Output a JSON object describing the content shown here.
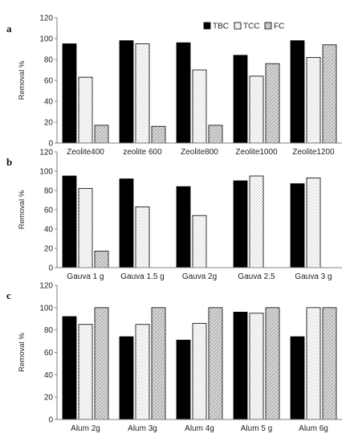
{
  "figure": {
    "legend": {
      "placement": "top-right",
      "entries": [
        {
          "label": "TBC",
          "pattern": "solid"
        },
        {
          "label": "TCC",
          "pattern": "dots"
        },
        {
          "label": "FC",
          "pattern": "hatch"
        }
      ]
    },
    "colors": {
      "TBC": "#000000",
      "TCC_dots": "#7a7a7a",
      "FC_hatch": "#808080",
      "axis": "#7f7f7f"
    }
  },
  "chart_data": [
    {
      "panel": "a",
      "type": "bar",
      "categories": [
        "Zeolite400",
        "zeolite 600",
        "Zeolite800",
        "Zeolite1000",
        "Zeolite1200"
      ],
      "series": [
        {
          "name": "TBC",
          "values": [
            95,
            98,
            96,
            84,
            98
          ]
        },
        {
          "name": "TCC",
          "values": [
            63,
            95,
            70,
            64,
            82
          ]
        },
        {
          "name": "FC",
          "values": [
            17,
            16,
            17,
            76,
            94
          ]
        }
      ],
      "ylabel": "Removal %",
      "ylim": [
        0,
        120
      ],
      "yticks": [
        0,
        20,
        40,
        60,
        80,
        100,
        120
      ],
      "grid": false
    },
    {
      "panel": "b",
      "type": "bar",
      "categories": [
        "Gauva 1 g",
        "Gauva 1.5 g",
        "Gauva 2g",
        "Gauva 2.5",
        "Gauva 3 g"
      ],
      "series": [
        {
          "name": "TBC",
          "values": [
            95,
            92,
            84,
            90,
            87
          ]
        },
        {
          "name": "TCC",
          "values": [
            82,
            63,
            54,
            95,
            93
          ]
        },
        {
          "name": "FC",
          "values": [
            17,
            null,
            null,
            null,
            null
          ]
        }
      ],
      "ylabel": "Removal %",
      "ylim": [
        0,
        120
      ],
      "yticks": [
        0,
        20,
        40,
        60,
        80,
        100,
        120
      ],
      "grid": false
    },
    {
      "panel": "c",
      "type": "bar",
      "categories": [
        "Alum 2g",
        "Alum 3g",
        "Alum 4g",
        "Alum 5 g",
        "Alum 6g"
      ],
      "series": [
        {
          "name": "TBC",
          "values": [
            92,
            74,
            71,
            96,
            74
          ]
        },
        {
          "name": "TCC",
          "values": [
            85,
            85,
            86,
            95,
            100
          ]
        },
        {
          "name": "FC",
          "values": [
            100,
            100,
            100,
            100,
            100
          ]
        }
      ],
      "ylabel": "Removal %",
      "ylim": [
        0,
        120
      ],
      "yticks": [
        0,
        20,
        40,
        60,
        80,
        100,
        120
      ],
      "grid": false
    }
  ]
}
